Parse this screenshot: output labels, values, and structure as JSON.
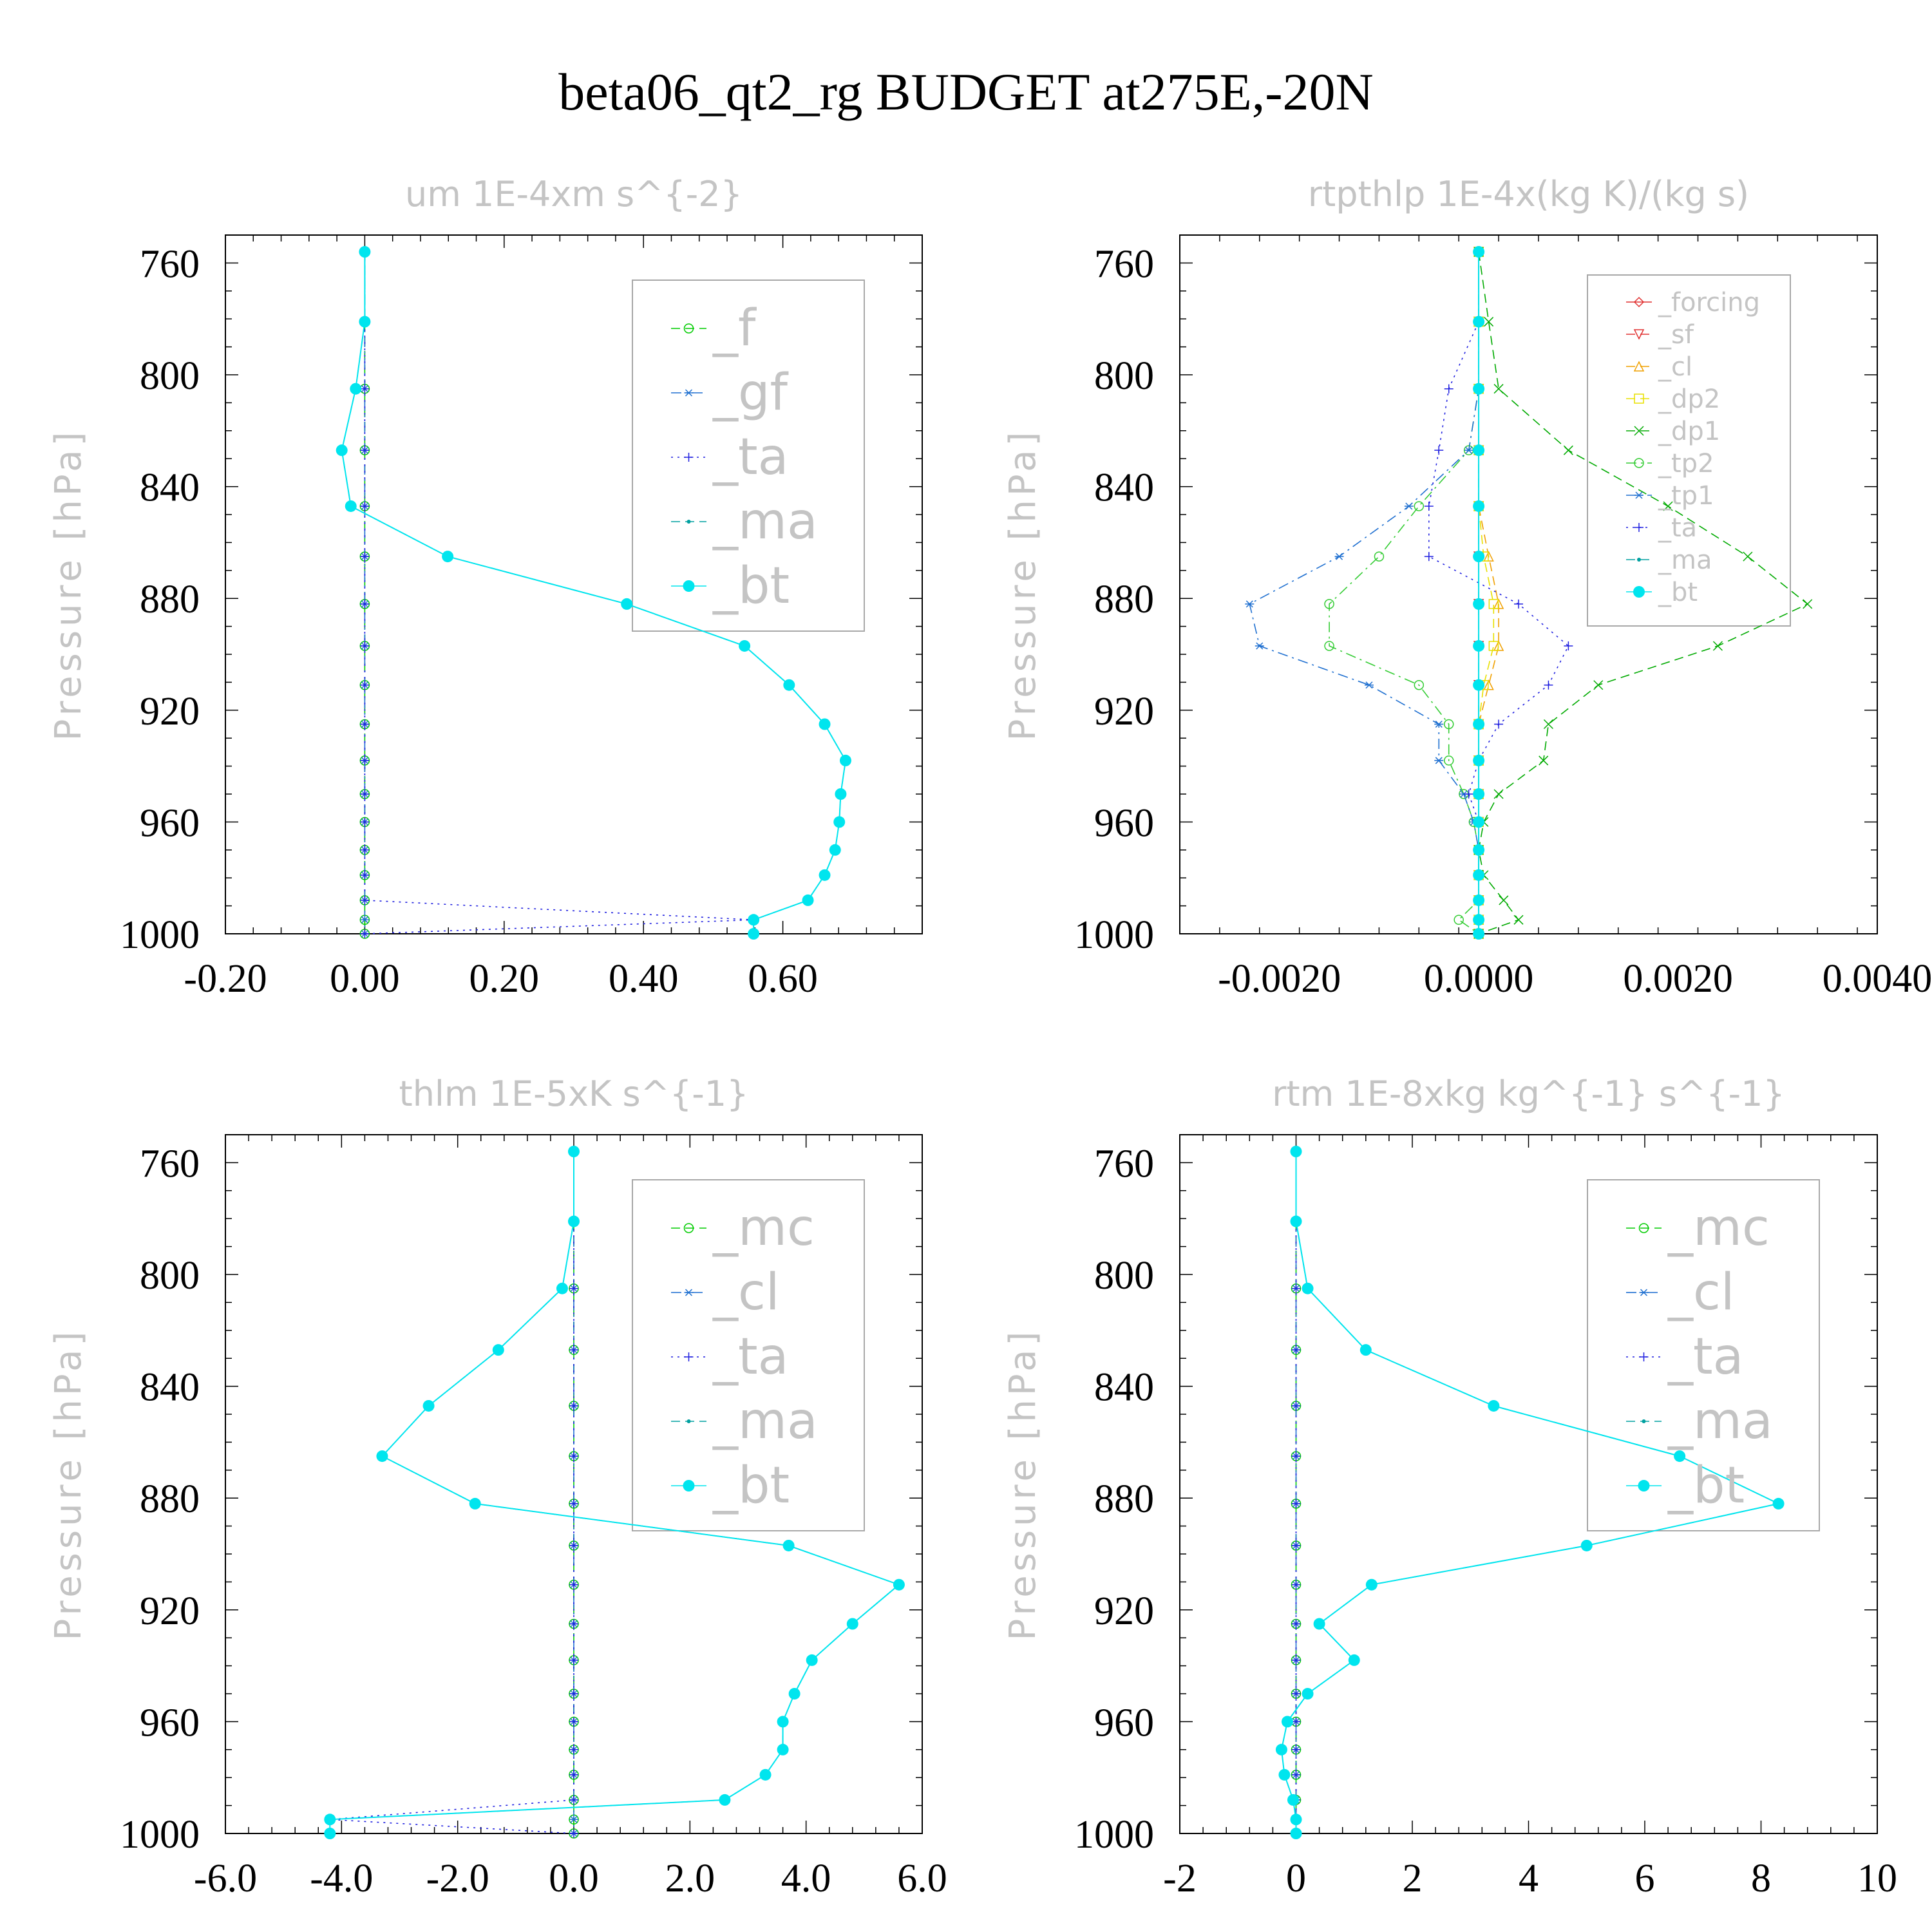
{
  "title": "beta06_qt2_rg  BUDGET at275E,-20N",
  "chart_data": [
    {
      "type": "line",
      "title": "um   1E-4xm s^{-2}",
      "ylabel": "Pressure [hPa]",
      "xlim": [
        -0.2,
        0.8
      ],
      "ylim": [
        1000,
        750
      ],
      "xticks": [
        -0.2,
        0.0,
        0.2,
        0.4,
        0.6
      ],
      "xtick_labels": [
        "-0.20",
        "0.00",
        "0.20",
        "0.40",
        "0.60"
      ],
      "yticks": [
        760,
        800,
        840,
        880,
        920,
        960,
        1000
      ],
      "ytick_labels": [
        "760",
        "800",
        "840",
        "880",
        "920",
        "960",
        "1000"
      ],
      "legend": {
        "position": "top-right",
        "size": "large"
      },
      "y": [
        756,
        781,
        805,
        827,
        847,
        865,
        882,
        897,
        911,
        925,
        938,
        950,
        960,
        970,
        979,
        988,
        995,
        1000
      ],
      "series": [
        {
          "name": "_f",
          "color": "#00cc00",
          "style": "dash",
          "marker": "circle",
          "values": [
            0,
            0,
            0,
            0,
            0,
            0,
            0,
            0,
            0,
            0,
            0,
            0,
            0,
            0,
            0,
            0,
            0,
            0
          ]
        },
        {
          "name": "_gf",
          "color": "#1e6fd0",
          "style": "dashdot",
          "marker": "star",
          "values": [
            0,
            0,
            0,
            0,
            0,
            0,
            0,
            0,
            0,
            0,
            0,
            0,
            0,
            0,
            0,
            0,
            0,
            0
          ]
        },
        {
          "name": "_ta",
          "color": "#2020e0",
          "style": "dot",
          "marker": "plus",
          "values": [
            0,
            0,
            0,
            0,
            0,
            0,
            0,
            0,
            0,
            0,
            0,
            0,
            0,
            0,
            0,
            0,
            0.558,
            0
          ]
        },
        {
          "name": "_ma",
          "color": "#00a0a0",
          "style": "dash",
          "marker": "dot",
          "values": [
            0,
            0,
            -0.013,
            -0.033,
            -0.02,
            0.119,
            0.376,
            0.545,
            0.609,
            0.66,
            0.69,
            0.683,
            0.681,
            0.675,
            0.66,
            0.636,
            0.558,
            0.558
          ]
        },
        {
          "name": "_bt",
          "color": "#00e5ee",
          "style": "solid",
          "marker": "bigdot",
          "values": [
            0,
            0,
            -0.013,
            -0.033,
            -0.02,
            0.119,
            0.376,
            0.545,
            0.609,
            0.66,
            0.69,
            0.683,
            0.681,
            0.675,
            0.66,
            0.636,
            0.558,
            0.558
          ]
        }
      ]
    },
    {
      "type": "line",
      "title": "rtpthlp   1E-4x(kg K)/(kg s)",
      "ylabel": "Pressure [hPa]",
      "xlim": [
        -0.003,
        0.004
      ],
      "ylim": [
        1000,
        750
      ],
      "xticks": [
        -0.002,
        0.0,
        0.002,
        0.004
      ],
      "xtick_labels": [
        "-0.0020",
        "0.0000",
        "0.0020",
        "0.0040"
      ],
      "yticks": [
        760,
        800,
        840,
        880,
        920,
        960,
        1000
      ],
      "ytick_labels": [
        "760",
        "800",
        "840",
        "880",
        "920",
        "960",
        "1000"
      ],
      "legend": {
        "position": "top-right",
        "size": "small"
      },
      "y": [
        756,
        781,
        805,
        827,
        847,
        865,
        882,
        897,
        911,
        925,
        938,
        950,
        960,
        970,
        979,
        988,
        995,
        1000
      ],
      "series": [
        {
          "name": "_forcing",
          "color": "#e03030",
          "style": "solid",
          "marker": "diamond",
          "values": [
            0,
            0,
            0,
            0,
            0,
            0,
            0,
            0,
            0,
            0,
            0,
            0,
            0,
            0,
            0,
            0,
            0,
            0
          ]
        },
        {
          "name": "_sf",
          "color": "#e03030",
          "style": "dash",
          "marker": "tri-down",
          "values": [
            0,
            0,
            0,
            0,
            0,
            0,
            0,
            0,
            0,
            0,
            0,
            0,
            0,
            0,
            0,
            0,
            0,
            0
          ]
        },
        {
          "name": "_cl",
          "color": "#f0a000",
          "style": "dash",
          "marker": "tri-up",
          "values": [
            0,
            0,
            0,
            0,
            0,
            0.0001,
            0.0002,
            0.0002,
            0.0001,
            0,
            0,
            0,
            0,
            0,
            0,
            0,
            0,
            0
          ]
        },
        {
          "name": "_dp2",
          "color": "#e8e000",
          "style": "dash",
          "marker": "square",
          "values": [
            0,
            0,
            0,
            0,
            0,
            5e-05,
            0.00015,
            0.00015,
            5e-05,
            0,
            0,
            0,
            0,
            0,
            0,
            0,
            0,
            0
          ]
        },
        {
          "name": "_dp1",
          "color": "#00aa00",
          "style": "dash",
          "marker": "x",
          "values": [
            0,
            0.0001,
            0.0002,
            0.0009,
            0.0019,
            0.0027,
            0.0033,
            0.0024,
            0.0012,
            0.0007,
            0.00065,
            0.0002,
            5e-05,
            0,
            5e-05,
            0.00025,
            0.0004,
            0
          ]
        },
        {
          "name": "_tp2",
          "color": "#33cc33",
          "style": "dashdot",
          "marker": "circle",
          "values": [
            0,
            0,
            0,
            -0.0001,
            -0.0006,
            -0.001,
            -0.0015,
            -0.0015,
            -0.0006,
            -0.0003,
            -0.0003,
            -0.00015,
            -5e-05,
            0,
            0,
            0,
            -0.0002,
            0
          ]
        },
        {
          "name": "_tp1",
          "color": "#1e6fd0",
          "style": "dashdot",
          "marker": "star",
          "values": [
            0,
            0,
            0,
            -0.0001,
            -0.0007,
            -0.0014,
            -0.0023,
            -0.0022,
            -0.0011,
            -0.0004,
            -0.0004,
            -0.00015,
            -5e-05,
            0,
            0,
            0,
            0,
            0
          ]
        },
        {
          "name": "_ta",
          "color": "#2020e0",
          "style": "dot",
          "marker": "plus",
          "values": [
            0,
            0,
            -0.0003,
            -0.0004,
            -0.0005,
            -0.0005,
            0.0004,
            0.0009,
            0.0007,
            0.0002,
            0,
            -0.0001,
            0,
            0,
            0,
            0,
            0,
            0
          ]
        },
        {
          "name": "_ma",
          "color": "#00a0a0",
          "style": "dash",
          "marker": "dot",
          "values": [
            0,
            0,
            0,
            0,
            0,
            0,
            0,
            0,
            0,
            0,
            0,
            0,
            0,
            0,
            0,
            0,
            0,
            0
          ]
        },
        {
          "name": "_bt",
          "color": "#00e5ee",
          "style": "solid",
          "marker": "bigdot",
          "values": [
            0,
            0,
            0,
            0,
            0,
            0,
            0,
            0,
            0,
            0,
            0,
            0,
            0,
            0,
            0,
            0,
            0,
            0
          ]
        }
      ]
    },
    {
      "type": "line",
      "title": "thlm   1E-5xK s^{-1}",
      "ylabel": "Pressure [hPa]",
      "xlim": [
        -6,
        6
      ],
      "ylim": [
        1000,
        750
      ],
      "xticks": [
        -6,
        -4,
        -2,
        0,
        2,
        4,
        6
      ],
      "xtick_labels": [
        "-6.0",
        "-4.0",
        "-2.0",
        "0.0",
        "2.0",
        "4.0",
        "6.0"
      ],
      "yticks": [
        760,
        800,
        840,
        880,
        920,
        960,
        1000
      ],
      "ytick_labels": [
        "760",
        "800",
        "840",
        "880",
        "920",
        "960",
        "1000"
      ],
      "legend": {
        "position": "top-right",
        "size": "large"
      },
      "y": [
        756,
        781,
        805,
        827,
        847,
        865,
        882,
        897,
        911,
        925,
        938,
        950,
        960,
        970,
        979,
        988,
        995,
        1000
      ],
      "series": [
        {
          "name": "_mc",
          "color": "#00cc00",
          "style": "dash",
          "marker": "circle",
          "values": [
            0,
            0,
            0,
            0,
            0,
            0,
            0,
            0,
            0,
            0,
            0,
            0,
            0,
            0,
            0,
            0,
            0,
            0
          ]
        },
        {
          "name": "_cl",
          "color": "#1e6fd0",
          "style": "dashdot",
          "marker": "star",
          "values": [
            0,
            0,
            0,
            0,
            0,
            0,
            0,
            0,
            0,
            0,
            0,
            0,
            0,
            0,
            0,
            0,
            0,
            0
          ]
        },
        {
          "name": "_ta",
          "color": "#2020e0",
          "style": "dot",
          "marker": "plus",
          "values": [
            0,
            0,
            0,
            0,
            0,
            0,
            0,
            0,
            0,
            0,
            0,
            0,
            0,
            0,
            0,
            0,
            -4.2,
            0
          ]
        },
        {
          "name": "_ma",
          "color": "#00a0a0",
          "style": "dash",
          "marker": "dot",
          "values": [
            0,
            0,
            -0.2,
            -1.3,
            -2.5,
            -3.3,
            -1.7,
            3.7,
            5.6,
            4.8,
            4.1,
            3.8,
            3.6,
            3.6,
            3.3,
            2.6,
            -4.2,
            -4.2
          ]
        },
        {
          "name": "_bt",
          "color": "#00e5ee",
          "style": "solid",
          "marker": "bigdot",
          "values": [
            0,
            0,
            -0.2,
            -1.3,
            -2.5,
            -3.3,
            -1.7,
            3.7,
            5.6,
            4.8,
            4.1,
            3.8,
            3.6,
            3.6,
            3.3,
            2.6,
            -4.2,
            -4.2
          ]
        }
      ]
    },
    {
      "type": "line",
      "title": "rtm   1E-8xkg kg^{-1} s^{-1}",
      "ylabel": "Pressure [hPa]",
      "xlim": [
        -2,
        10
      ],
      "ylim": [
        1000,
        750
      ],
      "xticks": [
        -2,
        0,
        2,
        4,
        6,
        8,
        10
      ],
      "xtick_labels": [
        "-2",
        "0",
        "2",
        "4",
        "6",
        "8",
        "10"
      ],
      "yticks": [
        760,
        800,
        840,
        880,
        920,
        960,
        1000
      ],
      "ytick_labels": [
        "760",
        "800",
        "840",
        "880",
        "920",
        "960",
        "1000"
      ],
      "legend": {
        "position": "top-right",
        "size": "large"
      },
      "y": [
        756,
        781,
        805,
        827,
        847,
        865,
        882,
        897,
        911,
        925,
        938,
        950,
        960,
        970,
        979,
        988,
        995,
        1000
      ],
      "series": [
        {
          "name": "_mc",
          "color": "#00cc00",
          "style": "dash",
          "marker": "circle",
          "values": [
            0,
            0,
            0,
            0,
            0,
            0,
            0,
            0,
            0,
            0,
            0,
            0,
            0,
            0,
            0,
            0,
            0,
            0
          ]
        },
        {
          "name": "_cl",
          "color": "#1e6fd0",
          "style": "dashdot",
          "marker": "star",
          "values": [
            0,
            0,
            0,
            0,
            0,
            0,
            0,
            0,
            0,
            0,
            0,
            0,
            0,
            0,
            0,
            0,
            0,
            0
          ]
        },
        {
          "name": "_ta",
          "color": "#2020e0",
          "style": "dot",
          "marker": "plus",
          "values": [
            0,
            0,
            0,
            0,
            0,
            0,
            0,
            0,
            0,
            0,
            0,
            0,
            0,
            0,
            0,
            0,
            0,
            0
          ]
        },
        {
          "name": "_ma",
          "color": "#00a0a0",
          "style": "dash",
          "marker": "dot",
          "values": [
            0,
            0,
            0.2,
            1.2,
            3.4,
            6.6,
            8.3,
            5.0,
            1.3,
            0.4,
            1.0,
            0.2,
            -0.15,
            -0.25,
            -0.2,
            -0.05,
            0,
            0
          ]
        },
        {
          "name": "_bt",
          "color": "#00e5ee",
          "style": "solid",
          "marker": "bigdot",
          "values": [
            0,
            0,
            0.2,
            1.2,
            3.4,
            6.6,
            8.3,
            5.0,
            1.3,
            0.4,
            1.0,
            0.2,
            -0.15,
            -0.25,
            -0.2,
            -0.05,
            0,
            0
          ]
        }
      ]
    }
  ]
}
